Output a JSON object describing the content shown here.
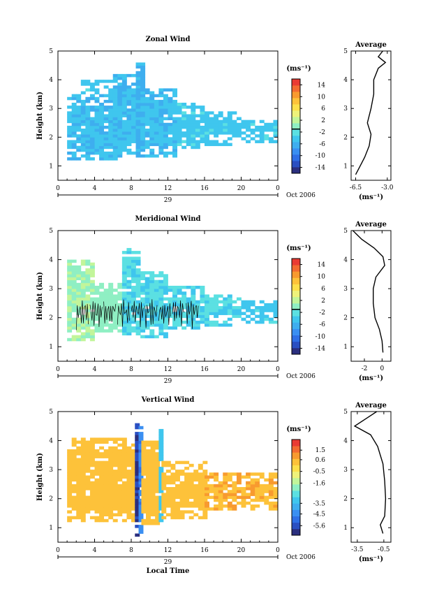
{
  "colors": {
    "cmap": [
      "#2b2f7f",
      "#2a4fc2",
      "#2f6fe6",
      "#3a8ff2",
      "#3eaeef",
      "#3fc6ee",
      "#5be0e2",
      "#8fefc3",
      "#c2f59a",
      "#eef27a",
      "#fde04b",
      "#fdc23a",
      "#f89a2f",
      "#f46b31",
      "#ea3b33"
    ],
    "contour": "#000000",
    "colorbar_mark": "#000000"
  },
  "chart_data": [
    {
      "type": "heatmap",
      "title": "Zonal Wind",
      "ylabel": "Height (km)",
      "xlabel": "",
      "x_date_label": "29",
      "x_month_label": "Oct 2006",
      "xticks": [
        "0",
        "4",
        "8",
        "12",
        "16",
        "20",
        "0"
      ],
      "xlim": [
        0,
        24
      ],
      "yticks": [
        "1",
        "2",
        "3",
        "4",
        "5"
      ],
      "ylim": [
        0.5,
        5
      ],
      "colorbar": {
        "unit": "(ms⁻¹)",
        "ticks": [
          "14",
          "10",
          "6",
          "2",
          "-2",
          "-6",
          "-10",
          "-14"
        ],
        "range": [
          -16,
          16
        ],
        "marked_value": -1
      },
      "field": {
        "columns": [
          {
            "t0": 1,
            "t1": 7,
            "z0": 1.2,
            "z1": 3.5,
            "value": -5
          },
          {
            "t0": 2.5,
            "t1": 6,
            "z0": 3.5,
            "z1": 4.0,
            "value": -4
          },
          {
            "t0": 6,
            "t1": 9,
            "z0": 1.4,
            "z1": 4.2,
            "value": -5
          },
          {
            "t0": 8.5,
            "t1": 9.5,
            "z0": 1.2,
            "z1": 4.6,
            "value": -6
          },
          {
            "t0": 9,
            "t1": 13,
            "z0": 1.3,
            "z1": 3.7,
            "value": -5
          },
          {
            "t0": 13,
            "t1": 16,
            "z0": 1.6,
            "z1": 3.2,
            "value": -4
          },
          {
            "t0": 16,
            "t1": 20,
            "z0": 1.7,
            "z1": 2.9,
            "value": -4
          },
          {
            "t0": 20,
            "t1": 24,
            "z0": 1.8,
            "z1": 2.6,
            "value": -4
          }
        ]
      },
      "average_profile": {
        "title": "Average",
        "xlabel": "(ms⁻¹)",
        "xticks": [
          "-6.5",
          "-3.0"
        ],
        "xlim": [
          -7,
          -2.6
        ],
        "yticks": [
          "1",
          "2",
          "3",
          "4",
          "5"
        ],
        "ylim": [
          0.5,
          5
        ],
        "profile": [
          [
            0.7,
            -6.5
          ],
          [
            1.0,
            -6.0
          ],
          [
            1.3,
            -5.5
          ],
          [
            1.7,
            -5.0
          ],
          [
            2.1,
            -4.8
          ],
          [
            2.5,
            -5.2
          ],
          [
            3.0,
            -4.8
          ],
          [
            3.5,
            -4.5
          ],
          [
            4.0,
            -4.5
          ],
          [
            4.4,
            -4.0
          ],
          [
            4.6,
            -3.2
          ],
          [
            4.8,
            -4.0
          ],
          [
            5.0,
            -3.5
          ]
        ]
      }
    },
    {
      "type": "heatmap",
      "title": "Meridional Wind",
      "ylabel": "Height (km)",
      "xlabel": "",
      "x_date_label": "29",
      "x_month_label": "Oct 2006",
      "xticks": [
        "0",
        "4",
        "8",
        "12",
        "16",
        "20",
        "0"
      ],
      "xlim": [
        0,
        24
      ],
      "yticks": [
        "1",
        "2",
        "3",
        "4",
        "5"
      ],
      "ylim": [
        0.5,
        5
      ],
      "colorbar": {
        "unit": "(ms⁻¹)",
        "ticks": [
          "14",
          "10",
          "6",
          "2",
          "-2",
          "-6",
          "-10",
          "-14"
        ],
        "range": [
          -16,
          16
        ],
        "marked_value": -1
      },
      "field": {
        "columns": [
          {
            "t0": 1,
            "t1": 4,
            "z0": 1.2,
            "z1": 4.0,
            "value": 1
          },
          {
            "t0": 4,
            "t1": 7,
            "z0": 1.5,
            "z1": 3.2,
            "value": 0
          },
          {
            "t0": 7,
            "t1": 9,
            "z0": 1.4,
            "z1": 4.4,
            "value": -3
          },
          {
            "t0": 9,
            "t1": 12,
            "z0": 1.3,
            "z1": 3.6,
            "value": -3
          },
          {
            "t0": 12,
            "t1": 16,
            "z0": 1.6,
            "z1": 3.1,
            "value": -3
          },
          {
            "t0": 16,
            "t1": 20,
            "z0": 1.7,
            "z1": 2.8,
            "value": -3
          },
          {
            "t0": 20,
            "t1": 24,
            "z0": 1.8,
            "z1": 2.6,
            "value": -4
          }
        ]
      },
      "average_profile": {
        "title": "Average",
        "xlabel": "(ms⁻¹)",
        "xticks": [
          "-2",
          "0"
        ],
        "xlim": [
          -3.5,
          1
        ],
        "yticks": [
          "1",
          "2",
          "3",
          "4",
          "5"
        ],
        "ylim": [
          0.5,
          5
        ],
        "profile": [
          [
            0.8,
            0.1
          ],
          [
            1.2,
            0.0
          ],
          [
            1.6,
            -0.3
          ],
          [
            2.0,
            -0.8
          ],
          [
            2.5,
            -1.0
          ],
          [
            3.0,
            -1.0
          ],
          [
            3.4,
            -0.7
          ],
          [
            3.8,
            0.3
          ],
          [
            4.1,
            0.1
          ],
          [
            4.4,
            -0.9
          ],
          [
            4.7,
            -2.3
          ],
          [
            5.0,
            -3.3
          ]
        ]
      }
    },
    {
      "type": "heatmap",
      "title": "Vertical Wind",
      "ylabel": "Height (km)",
      "xlabel": "Local Time",
      "x_date_label": "29",
      "x_month_label": "Oct 2006",
      "xticks": [
        "0",
        "4",
        "8",
        "12",
        "16",
        "20",
        "0"
      ],
      "xlim": [
        0,
        24
      ],
      "yticks": [
        "1",
        "2",
        "3",
        "4",
        "5"
      ],
      "ylim": [
        0.5,
        5
      ],
      "colorbar": {
        "unit": "(ms⁻¹)",
        "ticks": [
          "1.5",
          "0.6",
          "-0.5",
          "-1.6",
          "-3.5",
          "-4.5",
          "-5.6"
        ],
        "range": [
          -6.5,
          2.5
        ]
      },
      "field": {
        "columns": [
          {
            "t0": 1,
            "t1": 8.5,
            "z0": 1.2,
            "z1": 4.1,
            "value": 0.4
          },
          {
            "t0": 8.4,
            "t1": 8.8,
            "z0": 0.7,
            "z1": 4.6,
            "value": -6.0
          },
          {
            "t0": 8.8,
            "t1": 9.1,
            "z0": 0.7,
            "z1": 4.5,
            "value": -4.5
          },
          {
            "t0": 9.1,
            "t1": 11,
            "z0": 1.1,
            "z1": 4.0,
            "value": 0.4
          },
          {
            "t0": 11,
            "t1": 11.3,
            "z0": 1.2,
            "z1": 4.5,
            "value": -3.2
          },
          {
            "t0": 11.3,
            "t1": 16,
            "z0": 1.3,
            "z1": 3.3,
            "value": 0.4
          },
          {
            "t0": 16,
            "t1": 24,
            "z0": 1.6,
            "z1": 2.9,
            "value": 0.6
          }
        ]
      },
      "average_profile": {
        "title": "Average",
        "xlabel": "(ms⁻¹)",
        "xticks": [
          "-3.5",
          "-0.5"
        ],
        "xlim": [
          -4.2,
          0.3
        ],
        "yticks": [
          "1",
          "2",
          "3",
          "4",
          "5"
        ],
        "ylim": [
          0.5,
          5
        ],
        "profile": [
          [
            0.8,
            -0.6
          ],
          [
            1.1,
            -0.9
          ],
          [
            1.4,
            -0.4
          ],
          [
            2.0,
            -0.3
          ],
          [
            2.6,
            -0.4
          ],
          [
            3.2,
            -0.6
          ],
          [
            3.8,
            -1.2
          ],
          [
            4.2,
            -2.0
          ],
          [
            4.5,
            -3.8
          ],
          [
            4.8,
            -2.3
          ],
          [
            5.0,
            -1.3
          ]
        ]
      }
    }
  ]
}
